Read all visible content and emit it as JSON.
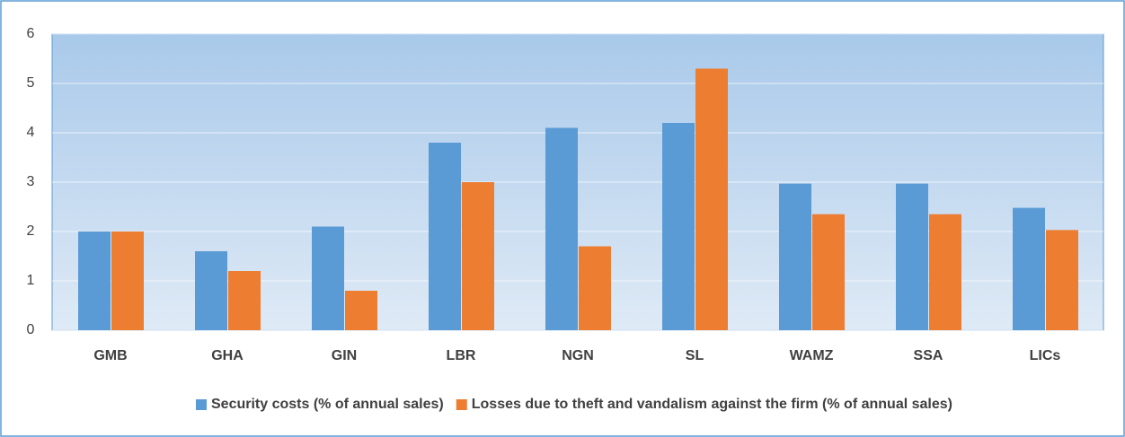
{
  "chart_data": {
    "type": "bar",
    "categories": [
      "GMB",
      "GHA",
      "GIN",
      "LBR",
      "NGN",
      "SL",
      "WAMZ",
      "SSA",
      "LICs"
    ],
    "series": [
      {
        "name": "Security costs (% of annual sales)",
        "color": "#5b9bd5",
        "values": [
          2.0,
          1.6,
          2.1,
          3.8,
          4.1,
          4.2,
          2.97,
          2.97,
          2.48
        ]
      },
      {
        "name": "Losses due to theft and vandalism against the firm (% of annual sales)",
        "color": "#ed7d31",
        "values": [
          2.0,
          1.2,
          0.8,
          3.0,
          1.7,
          5.3,
          2.35,
          2.35,
          2.03
        ]
      }
    ],
    "ylim": [
      0,
      6
    ],
    "yticks": [
      0,
      1,
      2,
      3,
      4,
      5,
      6
    ],
    "grid": true,
    "legend": "bottom"
  }
}
